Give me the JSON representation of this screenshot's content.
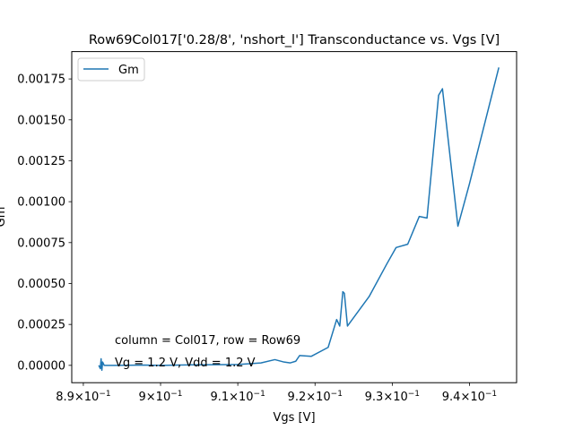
{
  "chart_data": {
    "type": "line",
    "title": "Row69Col017['0.28/8', 'nshort_l'] Transconductance vs. Vgs [V]",
    "xlabel": "Vgs [V]",
    "ylabel": "Gm",
    "xlim": [
      0.8885,
      0.9461
    ],
    "ylim": [
      -0.000106,
      0.001917
    ],
    "x_ticks": [
      {
        "value": 0.89,
        "base": "8.9",
        "exp": "−1"
      },
      {
        "value": 0.9,
        "base": "9",
        "exp": "−1"
      },
      {
        "value": 0.91,
        "base": "9.1",
        "exp": "−1"
      },
      {
        "value": 0.92,
        "base": "9.2",
        "exp": "−1"
      },
      {
        "value": 0.93,
        "base": "9.3",
        "exp": "−1"
      },
      {
        "value": 0.94,
        "base": "9.4",
        "exp": "−1"
      }
    ],
    "x_tick_times": "×10",
    "y_ticks": [
      {
        "value": 0.0,
        "label": "0.00000"
      },
      {
        "value": 0.00025,
        "label": "0.00025"
      },
      {
        "value": 0.0005,
        "label": "0.00050"
      },
      {
        "value": 0.00075,
        "label": "0.00075"
      },
      {
        "value": 0.001,
        "label": "0.00100"
      },
      {
        "value": 0.00125,
        "label": "0.00125"
      },
      {
        "value": 0.0015,
        "label": "0.00150"
      },
      {
        "value": 0.00175,
        "label": "0.00175"
      }
    ],
    "grid": false,
    "legend": {
      "position": "upper-left",
      "entries": [
        "Gm"
      ]
    },
    "annotations": [
      "column = Col017, row = Row69",
      "Vg = 1.2 V, Vdd = 1.2 V"
    ],
    "series": [
      {
        "name": "Gm",
        "color": "#1f77b4",
        "points": [
          [
            0.892,
            0.0
          ],
          [
            0.8922,
            -2e-05
          ],
          [
            0.8923,
            4e-05
          ],
          [
            0.8924,
            -3e-05
          ],
          [
            0.8925,
            2e-05
          ],
          [
            0.8927,
            0.0
          ],
          [
            0.894,
            0.0
          ],
          [
            0.898,
            2e-06
          ],
          [
            0.9,
            0.0
          ],
          [
            0.904,
            3e-06
          ],
          [
            0.91,
            5e-06
          ],
          [
            0.913,
            1.5e-05
          ],
          [
            0.9148,
            3.5e-05
          ],
          [
            0.916,
            2e-05
          ],
          [
            0.9168,
            1.5e-05
          ],
          [
            0.9175,
            2.5e-05
          ],
          [
            0.918,
            6e-05
          ],
          [
            0.9195,
            5.5e-05
          ],
          [
            0.9217,
            0.00011
          ],
          [
            0.9228,
            0.00028
          ],
          [
            0.9232,
            0.00024
          ],
          [
            0.9236,
            0.00045
          ],
          [
            0.9238,
            0.00044
          ],
          [
            0.9242,
            0.00024
          ],
          [
            0.927,
            0.00042
          ],
          [
            0.9293,
            0.00062
          ],
          [
            0.9305,
            0.00072
          ],
          [
            0.932,
            0.00074
          ],
          [
            0.9335,
            0.00091
          ],
          [
            0.9345,
            0.0009
          ],
          [
            0.936,
            0.00165
          ],
          [
            0.9365,
            0.00169
          ],
          [
            0.9385,
            0.00085
          ],
          [
            0.94,
            0.00111
          ],
          [
            0.9438,
            0.00182
          ]
        ]
      }
    ]
  }
}
